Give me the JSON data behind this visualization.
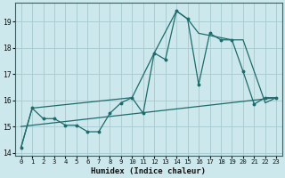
{
  "xlabel": "Humidex (Indice chaleur)",
  "background_color": "#cce8ec",
  "grid_color": "#aacdd4",
  "line_color": "#1e6b6b",
  "xlim": [
    -0.5,
    23.5
  ],
  "ylim": [
    13.9,
    19.7
  ],
  "yticks": [
    14,
    15,
    16,
    17,
    18,
    19
  ],
  "xticks": [
    0,
    1,
    2,
    3,
    4,
    5,
    6,
    7,
    8,
    9,
    10,
    11,
    12,
    13,
    14,
    15,
    16,
    17,
    18,
    19,
    20,
    21,
    22,
    23
  ],
  "series_jagged": {
    "x": [
      0,
      1,
      2,
      3,
      4,
      5,
      6,
      7,
      8,
      9,
      10,
      11,
      12,
      13,
      14,
      15,
      16,
      17,
      18,
      19,
      20,
      21,
      22,
      23
    ],
    "y": [
      14.2,
      15.7,
      15.3,
      15.3,
      15.05,
      15.05,
      14.8,
      14.8,
      15.5,
      15.9,
      16.1,
      15.5,
      17.8,
      17.55,
      19.4,
      19.1,
      16.6,
      18.55,
      18.3,
      18.3,
      17.1,
      15.85,
      16.1,
      16.1
    ]
  },
  "series_smooth": {
    "x": [
      0,
      1,
      10,
      12,
      14,
      15,
      16,
      19,
      20,
      22,
      23
    ],
    "y": [
      14.2,
      15.7,
      16.1,
      17.8,
      19.4,
      19.1,
      18.55,
      18.3,
      18.3,
      15.9,
      16.1
    ]
  },
  "series_linear": {
    "x": [
      0,
      23
    ],
    "y": [
      15.0,
      16.1
    ]
  }
}
